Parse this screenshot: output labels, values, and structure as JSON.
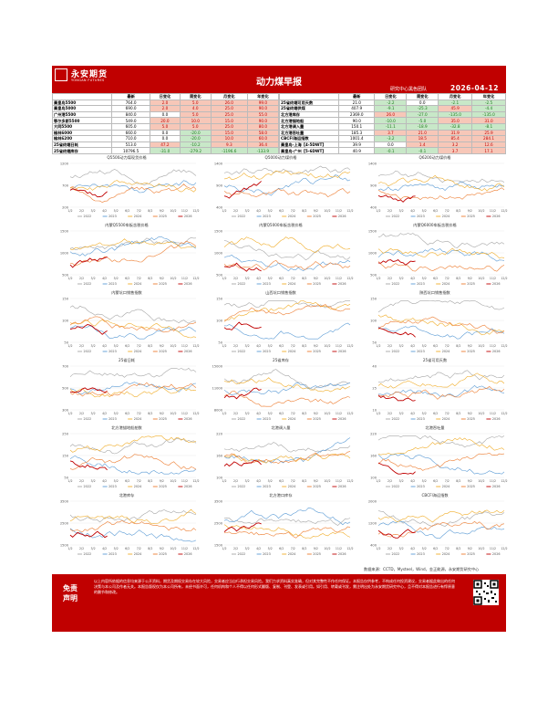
{
  "header": {
    "logo_cn": "永安期货",
    "logo_en": "YONGAN FUTURES",
    "title": "动力煤早报",
    "team": "研究中心黑色团队",
    "date": "2026-04-12"
  },
  "left_table": {
    "columns": [
      "最新",
      "日变化",
      "周变化",
      "月变化",
      "年变化"
    ],
    "rows": [
      {
        "name": "秦皇岛5500",
        "v": [
          "764.0",
          "2.0",
          "5.0",
          "26.0",
          "99.0"
        ],
        "s": [
          "p",
          "p",
          "p",
          "p"
        ]
      },
      {
        "name": "秦皇岛5000",
        "v": [
          "690.0",
          "2.0",
          "4.0",
          "25.0",
          "90.0"
        ],
        "s": [
          "p",
          "p",
          "p",
          "p"
        ]
      },
      {
        "name": "广州港5500",
        "v": [
          "840.0",
          "0.0",
          "5.0",
          "25.0",
          "55.0"
        ],
        "s": [
          "z",
          "p",
          "p",
          "p"
        ]
      },
      {
        "name": "鄂尔多斯5500",
        "v": [
          "549.0",
          "20.0",
          "10.0",
          "15.0",
          "90.0"
        ],
        "s": [
          "p",
          "p",
          "p",
          "p"
        ]
      },
      {
        "name": "大同5500",
        "v": [
          "605.0",
          "5.0",
          "5.0",
          "25.0",
          "80.0"
        ],
        "s": [
          "p",
          "p",
          "p",
          "p"
        ]
      },
      {
        "name": "榆林6000",
        "v": [
          "660.0",
          "0.0",
          "-20.0",
          "15.0",
          "58.0"
        ],
        "s": [
          "z",
          "n",
          "p",
          "p"
        ]
      },
      {
        "name": "榆林6200",
        "v": [
          "710.0",
          "0.0",
          "-20.0",
          "10.0",
          "60.0"
        ],
        "s": [
          "z",
          "n",
          "p",
          "p"
        ]
      },
      {
        "name": "25省终端日耗",
        "v": [
          "513.0",
          "47.2",
          "-10.2",
          "9.3",
          "36.4"
        ],
        "s": [
          "p",
          "n",
          "p",
          "p"
        ]
      },
      {
        "name": "25省终端库存",
        "v": [
          "10796.5",
          "-31.0",
          "-279.2",
          "-1196.6",
          "-133.9"
        ],
        "s": [
          "n",
          "n",
          "n",
          "n"
        ]
      }
    ]
  },
  "right_table": {
    "columns": [
      "最新",
      "日变化",
      "周变化",
      "月变化",
      "年变化"
    ],
    "rows": [
      {
        "name": "25省终端可用天数",
        "v": [
          "21.0",
          "-2.2",
          "0.0",
          "-2.1",
          "-2.5"
        ],
        "s": [
          "n",
          "z",
          "n",
          "n"
        ]
      },
      {
        "name": "25省终端供煤",
        "v": [
          "407.9",
          "-9.1",
          "-25.3",
          "45.9",
          "-4.4"
        ],
        "s": [
          "n",
          "n",
          "p",
          "n"
        ]
      },
      {
        "name": "北方港库存",
        "v": [
          "2369.0",
          "26.0",
          "-27.0",
          "-135.0",
          "-135.0"
        ],
        "s": [
          "p",
          "n",
          "n",
          "n"
        ]
      },
      {
        "name": "北方港锚地船",
        "v": [
          "90.0",
          "-10.0",
          "-5.0",
          "35.0",
          "31.0"
        ],
        "s": [
          "n",
          "n",
          "p",
          "p"
        ]
      },
      {
        "name": "北方港调入量",
        "v": [
          "150.1",
          "-11.1",
          "-18.9",
          "-32.8",
          "-8.1"
        ],
        "s": [
          "n",
          "n",
          "n",
          "n"
        ]
      },
      {
        "name": "北方港吞吐量",
        "v": [
          "185.3",
          "3.7",
          "21.0",
          "31.9",
          "25.9"
        ],
        "s": [
          "p",
          "p",
          "p",
          "p"
        ]
      },
      {
        "name": "CBCFI海运指数",
        "v": [
          "1001.4",
          "-3.2",
          "18.5",
          "85.4",
          "284.1"
        ],
        "s": [
          "n",
          "p",
          "p",
          "p"
        ]
      },
      {
        "name": "秦皇岛-上海【4-5DWT】",
        "v": [
          "39.9",
          "0.0",
          "1.4",
          "3.2",
          "12.6"
        ],
        "s": [
          "z",
          "p",
          "p",
          "p"
        ]
      },
      {
        "name": "秦皇岛-广州【5-6DWT】",
        "v": [
          "40.9",
          "-0.1",
          "-0.1",
          "3.7",
          "17.1"
        ],
        "s": [
          "n",
          "n",
          "p",
          "p"
        ]
      }
    ]
  },
  "colors": {
    "red": "#c00000",
    "s2022": "#a6a6a6",
    "s2023": "#5b9bd5",
    "s2024": "#f0ad2a",
    "s2025": "#ed7d31",
    "s2026": "#c00000"
  },
  "chart_legend": [
    "2022",
    "2023",
    "2024",
    "2025",
    "2026"
  ],
  "chart_xlabels": [
    "1/2",
    "2/2",
    "3/2",
    "4/2",
    "5/2",
    "6/2",
    "7/2",
    "8/2",
    "9/2",
    "10/2",
    "11/2",
    "12/2"
  ],
  "charts": [
    {
      "title": "Q5500动力煤现货价格",
      "ylim": [
        0,
        1200
      ],
      "yticks": [
        "1200",
        "700",
        "200"
      ],
      "seed": 1
    },
    {
      "title": "Q5000动力煤价格",
      "ylim": [
        0,
        1400
      ],
      "yticks": [
        "1400",
        "900",
        "400"
      ],
      "seed": 2
    },
    {
      "title": "Q6200动力煤价格",
      "ylim": [
        0,
        1400
      ],
      "yticks": [
        "1400",
        "900",
        "400"
      ],
      "seed": 3
    },
    {
      "title": "内蒙Q5500车板含税价格",
      "ylim": [
        0,
        1500
      ],
      "yticks": [
        "1500",
        "1000",
        "500"
      ],
      "seed": 4
    },
    {
      "title": "内蒙Q5000车板含税价格",
      "ylim": [
        0,
        1500
      ],
      "yticks": [
        "1500",
        "1000",
        "500"
      ],
      "seed": 5
    },
    {
      "title": "内蒙Q6000车板含税价格",
      "ylim": [
        0,
        1500
      ],
      "yticks": [
        "1500",
        "1000",
        "500"
      ],
      "seed": 6
    },
    {
      "title": "内蒙坑口销售指数",
      "ylim": [
        0,
        150
      ],
      "yticks": [
        "150",
        "100",
        "50"
      ],
      "seed": 7
    },
    {
      "title": "山西坑口销售指数",
      "ylim": [
        0,
        150
      ],
      "yticks": [
        "150",
        "100",
        "50"
      ],
      "seed": 8
    },
    {
      "title": "陕西坑口销售指数",
      "ylim": [
        0,
        150
      ],
      "yticks": [
        "150",
        "100",
        "50"
      ],
      "seed": 9
    },
    {
      "title": "25省日耗",
      "ylim": [
        300,
        700
      ],
      "yticks": [
        "700",
        "500",
        "300"
      ],
      "seed": 10
    },
    {
      "title": "25省库存",
      "ylim": [
        8000,
        15000
      ],
      "yticks": [
        "15000",
        "11000",
        "8000"
      ],
      "seed": 11
    },
    {
      "title": "25省可用天数",
      "ylim": [
        10,
        40
      ],
      "yticks": [
        "40",
        "25",
        "10"
      ],
      "seed": 12
    },
    {
      "title": "北方港锚地船舶数",
      "ylim": [
        0,
        250
      ],
      "yticks": [
        "250",
        "150",
        "50"
      ],
      "seed": 13
    },
    {
      "title": "北港调入量",
      "ylim": [
        80,
        220
      ],
      "yticks": [
        "220",
        "160",
        "100"
      ],
      "seed": 14
    },
    {
      "title": "北港吞吐量",
      "ylim": [
        80,
        220
      ],
      "yticks": [
        "220",
        "160",
        "100"
      ],
      "seed": 15
    },
    {
      "title": "北港库存",
      "ylim": [
        1000,
        3500
      ],
      "yticks": [
        "3500",
        "2500",
        "1500"
      ],
      "seed": 16
    },
    {
      "title": "北方港口库存",
      "ylim": [
        0,
        3500
      ],
      "yticks": [
        "3500",
        "2500",
        "1500"
      ],
      "seed": 17
    },
    {
      "title": "CBCFI海运指数",
      "ylim": [
        0,
        2000
      ],
      "yticks": [
        "2000",
        "1200",
        "400"
      ],
      "seed": 18
    }
  ],
  "source": "数据来源：CCTD，Mysteel，Wind，金正能源，永安期货研究中心",
  "disclaimer": {
    "label_1": "免责",
    "label_2": "声明",
    "text": "以上内容所依据的信息均来源于公开资料，期货及期权交易存在较大风险，交易者应当自行承担交易风险。我们力求资料真实准确，但对其完整性不作任何保证。本报告仅供参考，不构成任何投资建议，交易者据此做出的任何决策与本公司及作者无关。本报告版权仅为本公司所有，未经书面许可，任何机构和个人不得以任何形式翻版、复制、刊登、发表或引用。如引用、转载或刊发，需注明出处为永安期货研究中心，且不得对本报告进行有悖原意的删节和修改。"
  }
}
